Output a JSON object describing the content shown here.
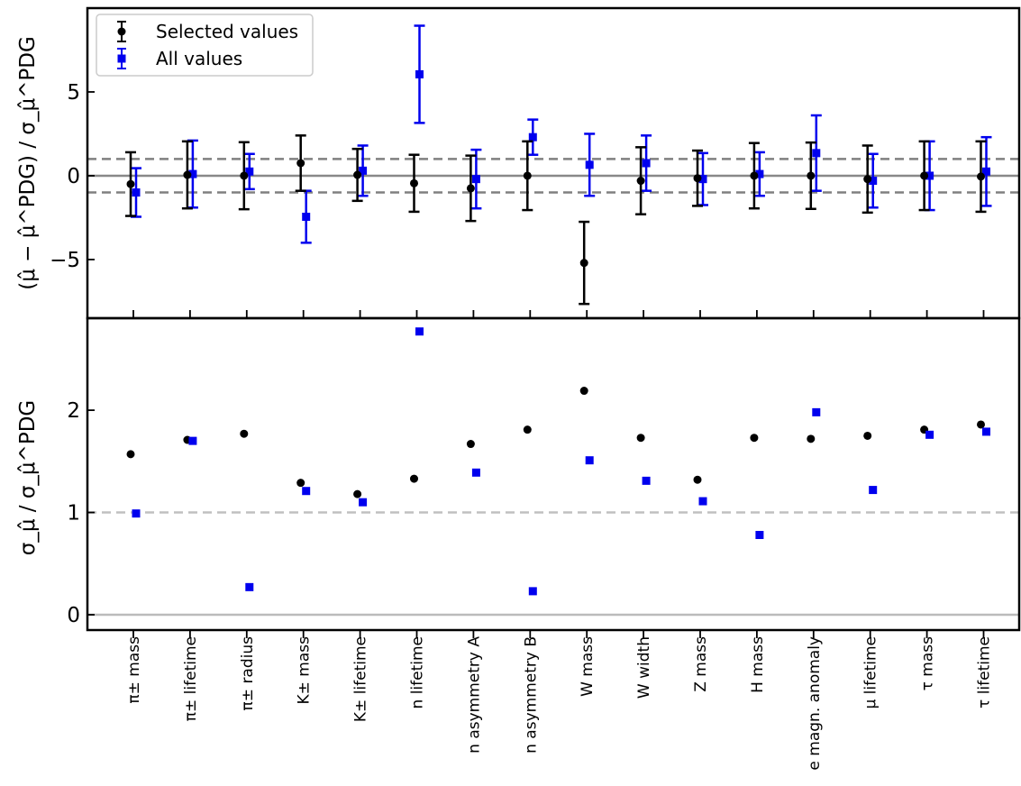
{
  "chart_data": [
    {
      "type": "scatter",
      "title": "",
      "ylabel": "(μ̂ − μ̂^PDG) / σ_μ̂^PDG",
      "ylim": [
        -8.5,
        10
      ],
      "yticks": [
        -5,
        0,
        5
      ],
      "reference_lines": [
        {
          "y": 0,
          "style": "solid",
          "color": "#888888"
        },
        {
          "y": 1,
          "style": "dashed",
          "color": "#808080"
        },
        {
          "y": -1,
          "style": "dashed",
          "color": "#808080"
        }
      ],
      "legend": {
        "position": "top-left",
        "entries": [
          "Selected values",
          "All values"
        ]
      },
      "categories": [
        "π± mass",
        "π± lifetime",
        "π± radius",
        "K± mass",
        "K± lifetime",
        "n lifetime",
        "n asymmetry A",
        "n asymmetry B",
        "W mass",
        "W width",
        "Z mass",
        "H mass",
        "e magn. anomaly",
        "μ lifetime",
        "τ mass",
        "τ lifetime"
      ],
      "series": [
        {
          "name": "Selected values",
          "color": "#000000",
          "marker": "circle",
          "values": [
            -0.5,
            0.05,
            0.0,
            0.75,
            0.05,
            -0.45,
            -0.75,
            0.0,
            -5.2,
            -0.3,
            -0.15,
            0.0,
            0.0,
            -0.2,
            0.0,
            -0.05
          ],
          "errors": [
            1.9,
            2.0,
            2.0,
            1.65,
            1.55,
            1.7,
            1.95,
            2.05,
            2.45,
            2.0,
            1.65,
            1.95,
            1.98,
            2.0,
            2.05,
            2.1
          ]
        },
        {
          "name": "All values",
          "color": "#0000ee",
          "marker": "square",
          "values": [
            -1.0,
            0.1,
            0.25,
            -2.45,
            0.3,
            6.05,
            -0.2,
            2.3,
            0.65,
            0.75,
            -0.2,
            0.1,
            1.35,
            -0.3,
            0.0,
            0.25
          ],
          "errors": [
            1.45,
            2.0,
            1.05,
            1.55,
            1.5,
            2.9,
            1.75,
            1.05,
            1.85,
            1.65,
            1.55,
            1.3,
            2.25,
            1.6,
            2.05,
            2.05
          ]
        }
      ]
    },
    {
      "type": "scatter",
      "title": "",
      "ylabel": "σ_μ̂ / σ_μ̂^PDG",
      "ylim": [
        -0.15,
        2.9
      ],
      "yticks": [
        0,
        1,
        2
      ],
      "reference_lines": [
        {
          "y": 0,
          "style": "solid",
          "color": "#bbbbbb"
        },
        {
          "y": 1,
          "style": "dashed",
          "color": "#c0c0c0"
        }
      ],
      "categories": [
        "π± mass",
        "π± lifetime",
        "π± radius",
        "K± mass",
        "K± lifetime",
        "n lifetime",
        "n asymmetry A",
        "n asymmetry B",
        "W mass",
        "W width",
        "Z mass",
        "H mass",
        "e magn. anomaly",
        "μ lifetime",
        "τ mass",
        "τ lifetime"
      ],
      "series": [
        {
          "name": "Selected values",
          "color": "#000000",
          "marker": "circle",
          "values": [
            1.57,
            1.71,
            1.77,
            1.29,
            1.18,
            1.33,
            1.67,
            1.81,
            2.19,
            1.73,
            1.32,
            1.73,
            1.72,
            1.75,
            1.81,
            1.86
          ]
        },
        {
          "name": "All values",
          "color": "#0000ee",
          "marker": "square",
          "values": [
            0.99,
            1.7,
            0.27,
            1.21,
            1.1,
            2.77,
            1.39,
            0.23,
            1.51,
            1.31,
            1.11,
            0.78,
            1.98,
            1.22,
            1.76,
            1.79
          ]
        }
      ]
    }
  ]
}
